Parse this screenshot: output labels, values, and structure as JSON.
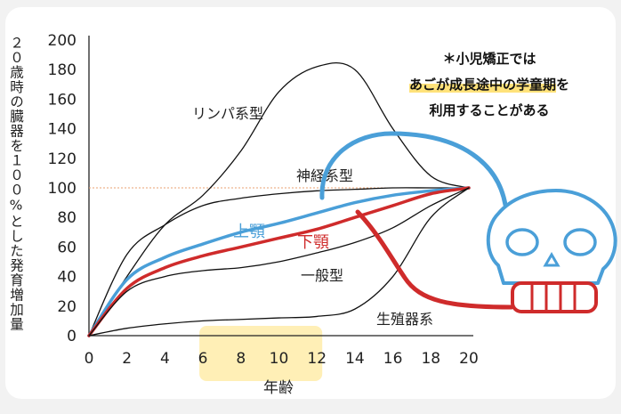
{
  "chart_data": {
    "type": "line",
    "ylabel": "２０歳時の臓器を１００%とした発育増加量",
    "xlabel": "年齢",
    "xlim": [
      0,
      20
    ],
    "ylim": [
      0,
      200
    ],
    "x_ticks": [
      "0",
      "2",
      "4",
      "6",
      "8",
      "10",
      "12",
      "14",
      "16",
      "18",
      "20"
    ],
    "y_ticks": [
      "0",
      "20",
      "40",
      "60",
      "80",
      "100",
      "120",
      "140",
      "160",
      "180",
      "200"
    ],
    "reference_line": 100,
    "highlight_x_range": [
      6,
      12
    ],
    "x": [
      0,
      2,
      4,
      6,
      8,
      10,
      12,
      14,
      16,
      18,
      20
    ],
    "series": [
      {
        "name": "リンパ系型",
        "color": "#111111",
        "values": [
          0,
          40,
          75,
          95,
          125,
          165,
          182,
          180,
          140,
          108,
          100
        ]
      },
      {
        "name": "神経系型",
        "color": "#111111",
        "values": [
          0,
          55,
          75,
          88,
          93,
          96,
          98,
          99,
          100,
          100,
          100
        ]
      },
      {
        "name": "上顎",
        "color": "#4a9fd8",
        "values": [
          0,
          38,
          53,
          62,
          70,
          76,
          83,
          90,
          95,
          98,
          100
        ]
      },
      {
        "name": "下顎",
        "color": "#cf2b2b",
        "values": [
          0,
          32,
          46,
          54,
          60,
          66,
          72,
          80,
          88,
          96,
          100
        ]
      },
      {
        "name": "一般型",
        "color": "#111111",
        "values": [
          0,
          30,
          40,
          44,
          46,
          50,
          56,
          63,
          73,
          88,
          100
        ]
      },
      {
        "name": "生殖器系",
        "color": "#111111",
        "values": [
          0,
          5,
          8,
          10,
          11,
          12,
          13,
          18,
          40,
          80,
          100
        ]
      }
    ],
    "annotations": [
      {
        "text": "リンパ系型"
      },
      {
        "text": "神経系型"
      },
      {
        "text": "上顎"
      },
      {
        "text": "下顎"
      },
      {
        "text": "一般型"
      },
      {
        "text": "生殖器系"
      }
    ]
  },
  "note": {
    "line1": "＊小児矯正では",
    "line2_highlight": "あごが成長途中の学童期",
    "line2_suffix": "を",
    "line3": "利用することがある"
  },
  "colors": {
    "upper_jaw": "#4a9fd8",
    "lower_jaw": "#cf2b2b",
    "highlight": "#ffe27a",
    "reference": "#e8a070"
  },
  "icons": [
    "skull-icon"
  ]
}
